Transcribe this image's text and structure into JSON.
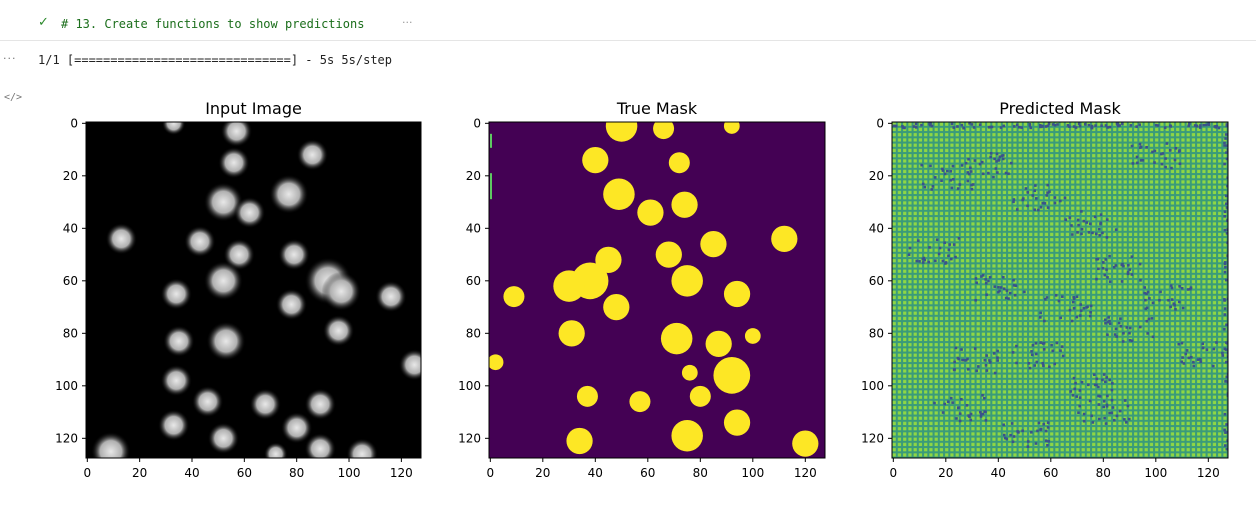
{
  "cell": {
    "status_icon": "checkmark-icon",
    "status_glyph": "✓",
    "title": "# 13. Create functions to show predictions",
    "collapsed_indicator": "···"
  },
  "output": {
    "menu_indicator": "···",
    "progress_text": "1/1 [==============================] - 5s 5s/step",
    "code_icon": "</>"
  },
  "chart_data": [
    {
      "type": "heatmap",
      "title": "Input Image",
      "colormap": "gray",
      "xlim": [
        0,
        127
      ],
      "ylim": [
        127,
        0
      ],
      "xticks": [
        0,
        20,
        40,
        60,
        80,
        100,
        120
      ],
      "yticks": [
        0,
        20,
        40,
        60,
        80,
        100,
        120
      ],
      "blobs": [
        [
          33,
          0,
          3
        ],
        [
          57,
          3,
          4
        ],
        [
          86,
          12,
          4
        ],
        [
          56,
          15,
          4
        ],
        [
          77,
          27,
          5
        ],
        [
          52,
          30,
          5
        ],
        [
          62,
          34,
          4
        ],
        [
          13,
          44,
          4
        ],
        [
          43,
          45,
          4
        ],
        [
          58,
          50,
          4
        ],
        [
          79,
          50,
          4
        ],
        [
          92,
          60,
          6
        ],
        [
          34,
          65,
          4
        ],
        [
          52,
          60,
          5
        ],
        [
          97,
          64,
          5
        ],
        [
          116,
          66,
          4
        ],
        [
          78,
          69,
          4
        ],
        [
          96,
          79,
          4
        ],
        [
          35,
          83,
          4
        ],
        [
          53,
          83,
          5
        ],
        [
          125,
          92,
          4
        ],
        [
          34,
          98,
          4
        ],
        [
          46,
          106,
          4
        ],
        [
          68,
          107,
          4
        ],
        [
          89,
          107,
          4
        ],
        [
          33,
          115,
          4
        ],
        [
          52,
          120,
          4
        ],
        [
          80,
          116,
          4
        ],
        [
          89,
          124,
          4
        ],
        [
          9,
          125,
          5
        ],
        [
          72,
          126,
          3
        ],
        [
          105,
          126,
          4
        ]
      ]
    },
    {
      "type": "heatmap",
      "title": "True Mask",
      "colormap": "viridis",
      "xlim": [
        0,
        127
      ],
      "ylim": [
        127,
        0
      ],
      "xticks": [
        0,
        20,
        40,
        60,
        80,
        100,
        120
      ],
      "yticks": [
        0,
        20,
        40,
        60,
        80,
        100,
        120
      ],
      "background_color": "#440154",
      "foreground_color": "#fde725",
      "blobs": [
        [
          50,
          1,
          6
        ],
        [
          66,
          2,
          4
        ],
        [
          92,
          1,
          3
        ],
        [
          40,
          14,
          5
        ],
        [
          72,
          15,
          4
        ],
        [
          49,
          27,
          6
        ],
        [
          61,
          34,
          5
        ],
        [
          74,
          31,
          5
        ],
        [
          112,
          44,
          5
        ],
        [
          85,
          46,
          5
        ],
        [
          45,
          52,
          5
        ],
        [
          68,
          50,
          5
        ],
        [
          38,
          60,
          7
        ],
        [
          75,
          60,
          6
        ],
        [
          30,
          62,
          6
        ],
        [
          9,
          66,
          4
        ],
        [
          94,
          65,
          5
        ],
        [
          48,
          70,
          5
        ],
        [
          31,
          80,
          5
        ],
        [
          71,
          82,
          6
        ],
        [
          87,
          84,
          5
        ],
        [
          100,
          81,
          3
        ],
        [
          2,
          91,
          3
        ],
        [
          76,
          95,
          3
        ],
        [
          92,
          96,
          7
        ],
        [
          37,
          104,
          4
        ],
        [
          57,
          106,
          4
        ],
        [
          80,
          104,
          4
        ],
        [
          94,
          114,
          5
        ],
        [
          34,
          121,
          5
        ],
        [
          75,
          119,
          6
        ],
        [
          120,
          122,
          5
        ]
      ]
    },
    {
      "type": "heatmap",
      "title": "Predicted Mask",
      "colormap": "viridis",
      "xlim": [
        0,
        127
      ],
      "ylim": [
        127,
        0
      ],
      "xticks": [
        0,
        20,
        40,
        60,
        80,
        100,
        120
      ],
      "yticks": [
        0,
        20,
        40,
        60,
        80,
        100,
        120
      ],
      "background_color": "#3a9b7a",
      "grid_color": "#8fd744",
      "noise_color": "#3b528b"
    }
  ]
}
